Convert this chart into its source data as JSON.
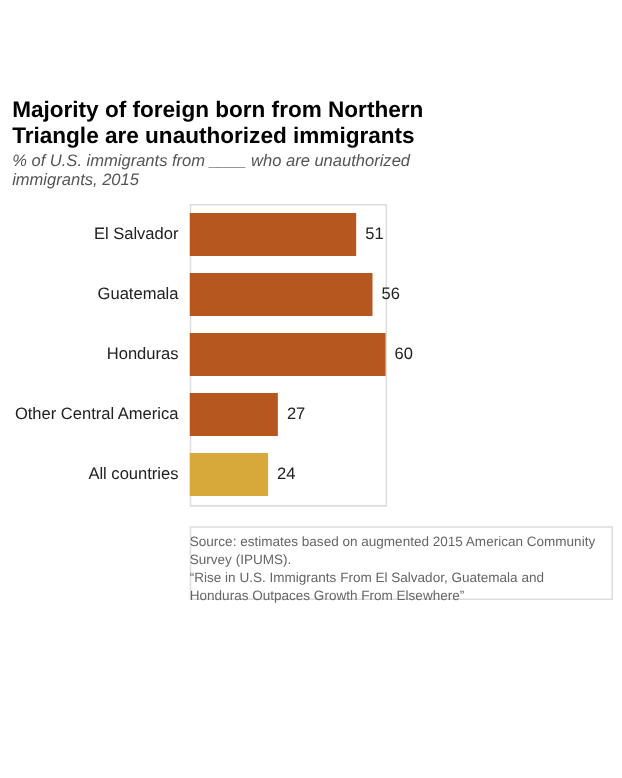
{
  "chart_data": {
    "type": "bar",
    "orientation": "horizontal",
    "title": "Majority of foreign born from Northern Triangle are unauthorized immigrants",
    "subtitle": "% of U.S. immigrants from ____ who are unauthorized immigrants, 2015",
    "categories": [
      "El Salvador",
      "Guatemala",
      "Honduras",
      "Other Central America",
      "All countries"
    ],
    "values": [
      51,
      56,
      60,
      27,
      24
    ],
    "colors": [
      "#b5571f",
      "#b5571f",
      "#b5571f",
      "#b5571f",
      "#d6a93a"
    ],
    "data_labels": true,
    "annotations": [
      "Source: estimates based on augmented 2015 American Community Survey (IPUMS).",
      "“Rise in U.S. Immigrants From El Salvador, Guatemala and Honduras Outpaces Growth From Elsewhere”"
    ]
  }
}
